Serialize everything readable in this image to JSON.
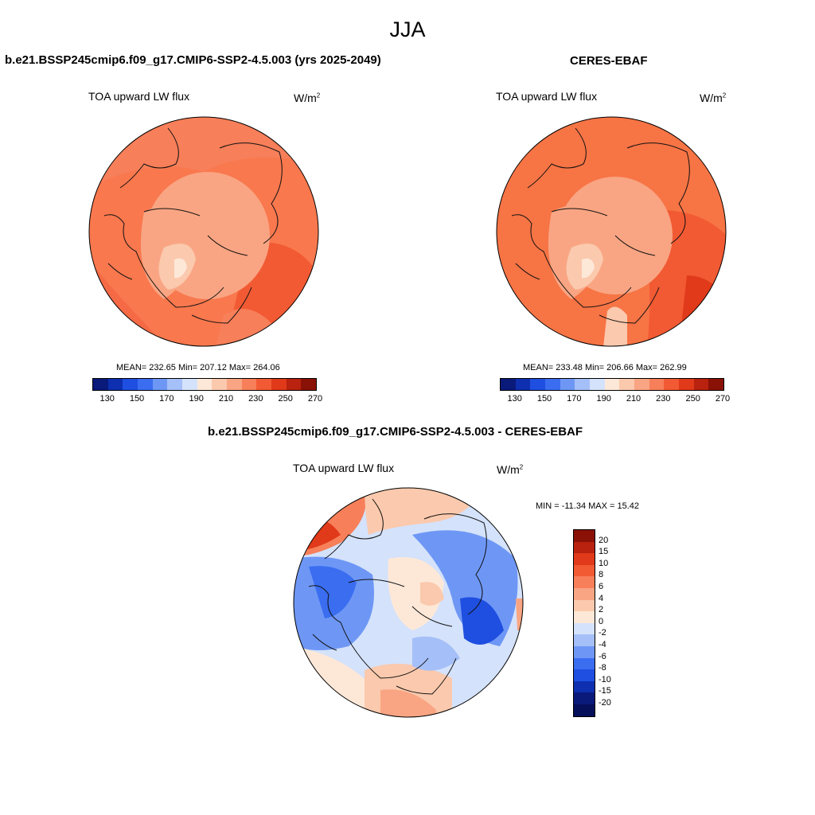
{
  "season": "JJA",
  "top_left": {
    "title": "b.e21.BSSP245cmip6.f09_g17.CMIP6-SSP2-4.5.003 (yrs 2025-2049)",
    "variable": "TOA upward LW flux",
    "units_base": "W/m",
    "units_exp": "2",
    "stats": "MEAN= 232.65  Min= 207.12  Max= 264.06"
  },
  "top_right": {
    "title": "CERES-EBAF",
    "variable": "TOA upward LW flux",
    "units_base": "W/m",
    "units_exp": "2",
    "stats": "MEAN= 233.48  Min= 206.66  Max= 262.99"
  },
  "bottom": {
    "title": "b.e21.BSSP245cmip6.f09_g17.CMIP6-SSP2-4.5.003 - CERES-EBAF",
    "variable": "TOA upward LW flux",
    "units_base": "W/m",
    "units_exp": "2",
    "minmax": "MIN = -11.34 MAX =  15.42"
  },
  "colorbar_top": {
    "colors": [
      "#0a1a7a",
      "#0d2fb0",
      "#1f4fe0",
      "#3a6df0",
      "#6e97f5",
      "#a5bff8",
      "#d4e2fb",
      "#fde8d8",
      "#fbc9ad",
      "#f9a583",
      "#f77f59",
      "#f25a33",
      "#e03a1a",
      "#b8220e",
      "#8a1106"
    ],
    "tick_labels": [
      "130",
      "150",
      "170",
      "190",
      "210",
      "230",
      "250",
      "270"
    ]
  },
  "colorbar_diff": {
    "colors": [
      "#8a1106",
      "#b8220e",
      "#e03a1a",
      "#f25a33",
      "#f77f59",
      "#f9a583",
      "#fbc9ad",
      "#fde8d8",
      "#d4e2fb",
      "#a5bff8",
      "#6e97f5",
      "#3a6df0",
      "#1f4fe0",
      "#0d2fb0",
      "#0a1a7a",
      "#050f5a"
    ],
    "tick_labels": [
      "20",
      "15",
      "10",
      "8",
      "6",
      "4",
      "2",
      "0",
      "-2",
      "-4",
      "-6",
      "-8",
      "-10",
      "-15",
      "-20"
    ]
  }
}
